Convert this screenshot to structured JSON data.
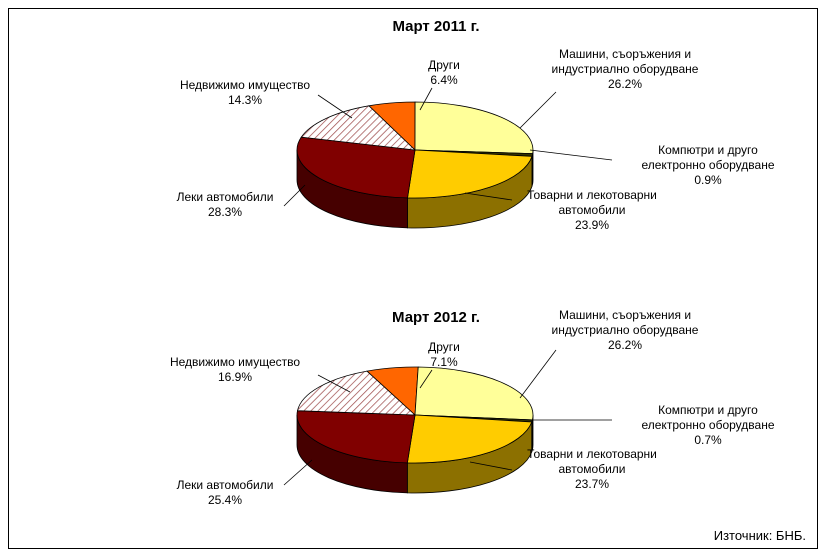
{
  "chart_data": [
    {
      "type": "pie3d",
      "title": "Март 2011 г.",
      "categories": [
        "Други",
        "Машини, съоръжения и индустриално оборудване",
        "Компютри и друго електронно оборудване",
        "Товарни и лекотоварни автомобили",
        "Леки автомобили",
        "Недвижимо имущество"
      ],
      "values": [
        6.4,
        26.2,
        0.9,
        23.9,
        28.3,
        14.3
      ],
      "value_labels": [
        "6.4%",
        "26.2%",
        "0.9%",
        "23.9%",
        "28.3%",
        "14.3%"
      ],
      "colors": [
        "#ff6600",
        "#ffff99",
        "#333300",
        "#ffcc00",
        "#800000",
        "#ffffff"
      ],
      "hatch": [
        false,
        false,
        false,
        false,
        false,
        true
      ]
    },
    {
      "type": "pie3d",
      "title": "Март 2012 г.",
      "categories": [
        "Други",
        "Машини, съоръжения и индустриално оборудване",
        "Компютри и друго електронно оборудване",
        "Товарни и лекотоварни автомобили",
        "Леки автомобили",
        "Недвижимо имущество"
      ],
      "values": [
        7.1,
        26.2,
        0.7,
        23.7,
        25.4,
        16.9
      ],
      "value_labels": [
        "7.1%",
        "26.2%",
        "0.7%",
        "23.7%",
        "25.4%",
        "16.9%"
      ],
      "colors": [
        "#ff6600",
        "#ffff99",
        "#333300",
        "#ffcc00",
        "#800000",
        "#ffffff"
      ],
      "hatch": [
        false,
        false,
        false,
        false,
        false,
        true
      ]
    }
  ],
  "source": "Източник: БНБ."
}
